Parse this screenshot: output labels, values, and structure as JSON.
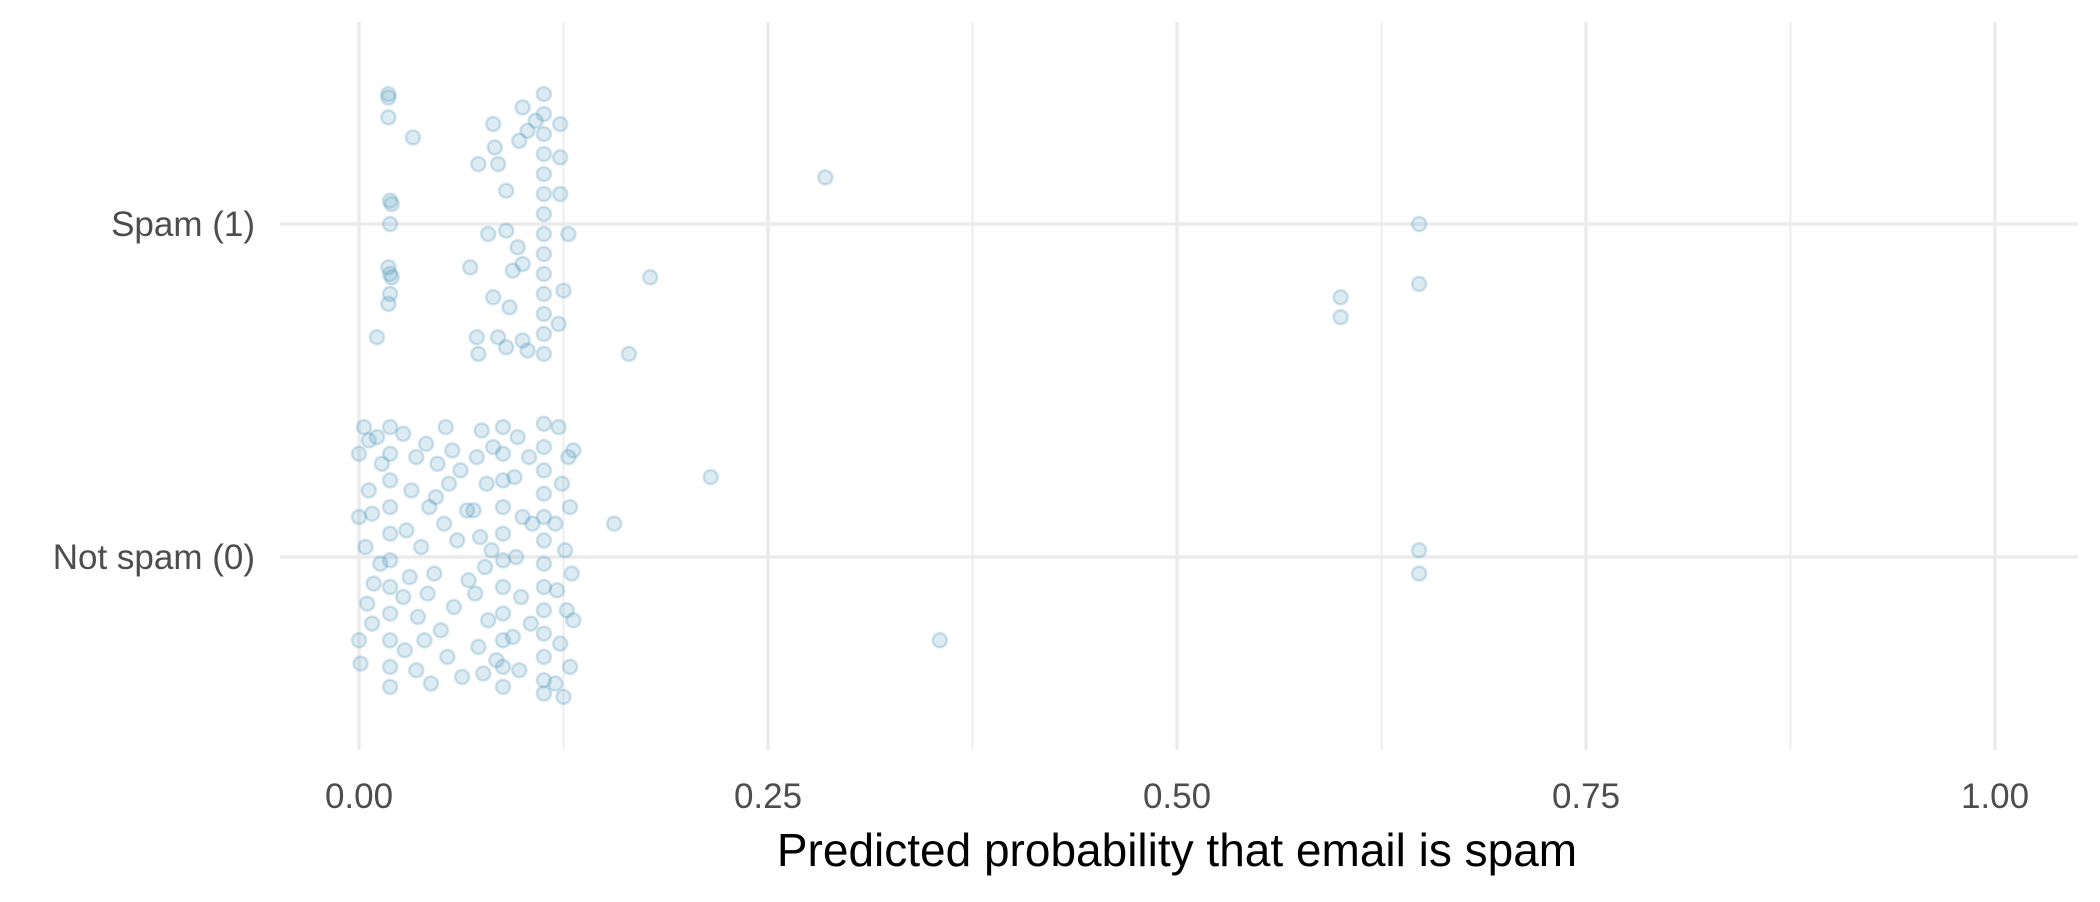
{
  "chart_data": {
    "type": "scatter",
    "title": "",
    "xlabel": "Predicted probability that email is spam",
    "ylabel": "",
    "xlim": [
      -0.05,
      1.05
    ],
    "xticks": [
      {
        "value": 0.0,
        "label": "0.00"
      },
      {
        "value": 0.25,
        "label": "0.25"
      },
      {
        "value": 0.5,
        "label": "0.50"
      },
      {
        "value": 0.75,
        "label": "0.75"
      },
      {
        "value": 1.0,
        "label": "1.00"
      }
    ],
    "x_minor_ticks": [
      0.125,
      0.375,
      0.625,
      0.875
    ],
    "yticks": [
      {
        "value": 0,
        "label": "Not spam (0)"
      },
      {
        "value": 1,
        "label": "Spam (1)"
      }
    ],
    "grid": true,
    "legend": "none",
    "jitter": "vertical jitter around class value (±0.4)",
    "marker_color": "#569bbd",
    "marker_alpha": 0.2,
    "series": [
      {
        "class": 1,
        "points": [
          [
            0.018,
            1.39
          ],
          [
            0.018,
            1.38
          ],
          [
            0.018,
            1.32
          ],
          [
            0.033,
            1.26
          ],
          [
            0.019,
            1.07
          ],
          [
            0.02,
            1.06
          ],
          [
            0.019,
            1.0
          ],
          [
            0.018,
            0.87
          ],
          [
            0.019,
            0.85
          ],
          [
            0.02,
            0.84
          ],
          [
            0.019,
            0.79
          ],
          [
            0.018,
            0.76
          ],
          [
            0.011,
            0.66
          ],
          [
            0.082,
            1.3
          ],
          [
            0.073,
            1.18
          ],
          [
            0.083,
            1.23
          ],
          [
            0.085,
            1.18
          ],
          [
            0.09,
            1.1
          ],
          [
            0.098,
            1.25
          ],
          [
            0.103,
            1.28
          ],
          [
            0.108,
            1.31
          ],
          [
            0.1,
            1.35
          ],
          [
            0.079,
            0.97
          ],
          [
            0.09,
            0.98
          ],
          [
            0.097,
            0.93
          ],
          [
            0.068,
            0.87
          ],
          [
            0.094,
            0.86
          ],
          [
            0.1,
            0.88
          ],
          [
            0.082,
            0.78
          ],
          [
            0.092,
            0.75
          ],
          [
            0.072,
            0.66
          ],
          [
            0.073,
            0.61
          ],
          [
            0.085,
            0.66
          ],
          [
            0.09,
            0.63
          ],
          [
            0.1,
            0.65
          ],
          [
            0.103,
            0.62
          ],
          [
            0.113,
            1.39
          ],
          [
            0.113,
            1.33
          ],
          [
            0.113,
            1.27
          ],
          [
            0.113,
            1.21
          ],
          [
            0.113,
            1.15
          ],
          [
            0.113,
            1.09
          ],
          [
            0.113,
            1.03
          ],
          [
            0.113,
            0.97
          ],
          [
            0.113,
            0.91
          ],
          [
            0.113,
            0.85
          ],
          [
            0.113,
            0.79
          ],
          [
            0.113,
            0.73
          ],
          [
            0.113,
            0.67
          ],
          [
            0.113,
            0.61
          ],
          [
            0.123,
            1.3
          ],
          [
            0.123,
            1.2
          ],
          [
            0.123,
            1.09
          ],
          [
            0.128,
            0.97
          ],
          [
            0.125,
            0.8
          ],
          [
            0.122,
            0.7
          ],
          [
            0.285,
            1.14
          ],
          [
            0.178,
            0.84
          ],
          [
            0.165,
            0.61
          ],
          [
            0.648,
            1.0
          ],
          [
            0.648,
            0.82
          ],
          [
            0.6,
            0.78
          ],
          [
            0.6,
            0.72
          ]
        ]
      },
      {
        "class": 0,
        "points": [
          [
            0.003,
            0.39
          ],
          [
            0.0,
            0.31
          ],
          [
            0.006,
            0.35
          ],
          [
            0.011,
            0.36
          ],
          [
            0.014,
            0.28
          ],
          [
            0.006,
            0.2
          ],
          [
            0.008,
            0.13
          ],
          [
            0.0,
            0.12
          ],
          [
            0.004,
            0.03
          ],
          [
            0.009,
            -0.08
          ],
          [
            0.005,
            -0.14
          ],
          [
            0.0,
            -0.25
          ],
          [
            0.001,
            -0.32
          ],
          [
            0.008,
            -0.2
          ],
          [
            0.013,
            -0.02
          ],
          [
            0.019,
            0.39
          ],
          [
            0.019,
            0.31
          ],
          [
            0.019,
            0.23
          ],
          [
            0.019,
            0.15
          ],
          [
            0.019,
            0.07
          ],
          [
            0.019,
            -0.01
          ],
          [
            0.019,
            -0.09
          ],
          [
            0.019,
            -0.17
          ],
          [
            0.019,
            -0.25
          ],
          [
            0.019,
            -0.33
          ],
          [
            0.019,
            -0.39
          ],
          [
            0.027,
            0.37
          ],
          [
            0.035,
            0.3
          ],
          [
            0.041,
            0.34
          ],
          [
            0.048,
            0.28
          ],
          [
            0.053,
            0.39
          ],
          [
            0.032,
            0.2
          ],
          [
            0.043,
            0.15
          ],
          [
            0.055,
            0.22
          ],
          [
            0.062,
            0.26
          ],
          [
            0.029,
            0.08
          ],
          [
            0.038,
            0.03
          ],
          [
            0.046,
            -0.05
          ],
          [
            0.052,
            0.1
          ],
          [
            0.06,
            0.05
          ],
          [
            0.027,
            -0.12
          ],
          [
            0.036,
            -0.18
          ],
          [
            0.042,
            -0.11
          ],
          [
            0.05,
            -0.22
          ],
          [
            0.058,
            -0.15
          ],
          [
            0.028,
            -0.28
          ],
          [
            0.035,
            -0.34
          ],
          [
            0.044,
            -0.38
          ],
          [
            0.054,
            -0.3
          ],
          [
            0.063,
            -0.36
          ],
          [
            0.067,
            -0.07
          ],
          [
            0.066,
            0.14
          ],
          [
            0.04,
            -0.25
          ],
          [
            0.031,
            -0.06
          ],
          [
            0.057,
            0.32
          ],
          [
            0.047,
            0.18
          ],
          [
            0.075,
            0.38
          ],
          [
            0.072,
            0.3
          ],
          [
            0.078,
            0.22
          ],
          [
            0.07,
            0.14
          ],
          [
            0.074,
            0.06
          ],
          [
            0.077,
            -0.03
          ],
          [
            0.071,
            -0.11
          ],
          [
            0.079,
            -0.19
          ],
          [
            0.073,
            -0.27
          ],
          [
            0.076,
            -0.35
          ],
          [
            0.082,
            0.33
          ],
          [
            0.084,
            -0.31
          ],
          [
            0.081,
            0.02
          ],
          [
            0.088,
            0.39
          ],
          [
            0.088,
            0.31
          ],
          [
            0.088,
            0.23
          ],
          [
            0.088,
            0.15
          ],
          [
            0.088,
            0.07
          ],
          [
            0.088,
            -0.01
          ],
          [
            0.088,
            -0.09
          ],
          [
            0.088,
            -0.17
          ],
          [
            0.088,
            -0.25
          ],
          [
            0.088,
            -0.33
          ],
          [
            0.088,
            -0.39
          ],
          [
            0.097,
            0.36
          ],
          [
            0.095,
            0.24
          ],
          [
            0.1,
            0.12
          ],
          [
            0.096,
            0.0
          ],
          [
            0.099,
            -0.12
          ],
          [
            0.094,
            -0.24
          ],
          [
            0.098,
            -0.34
          ],
          [
            0.104,
            0.3
          ],
          [
            0.106,
            0.1
          ],
          [
            0.105,
            -0.2
          ],
          [
            0.113,
            0.4
          ],
          [
            0.113,
            0.33
          ],
          [
            0.113,
            0.26
          ],
          [
            0.113,
            0.19
          ],
          [
            0.113,
            0.12
          ],
          [
            0.113,
            0.05
          ],
          [
            0.113,
            -0.02
          ],
          [
            0.113,
            -0.09
          ],
          [
            0.113,
            -0.16
          ],
          [
            0.113,
            -0.23
          ],
          [
            0.113,
            -0.3
          ],
          [
            0.113,
            -0.37
          ],
          [
            0.113,
            -0.41
          ],
          [
            0.122,
            0.39
          ],
          [
            0.128,
            0.3
          ],
          [
            0.131,
            0.32
          ],
          [
            0.124,
            0.22
          ],
          [
            0.129,
            0.15
          ],
          [
            0.12,
            0.1
          ],
          [
            0.126,
            0.02
          ],
          [
            0.13,
            -0.05
          ],
          [
            0.121,
            -0.1
          ],
          [
            0.127,
            -0.16
          ],
          [
            0.131,
            -0.19
          ],
          [
            0.123,
            -0.26
          ],
          [
            0.129,
            -0.33
          ],
          [
            0.12,
            -0.38
          ],
          [
            0.125,
            -0.42
          ],
          [
            0.215,
            0.24
          ],
          [
            0.156,
            0.1
          ],
          [
            0.355,
            -0.25
          ],
          [
            0.648,
            0.02
          ],
          [
            0.648,
            -0.05
          ]
        ]
      }
    ]
  }
}
